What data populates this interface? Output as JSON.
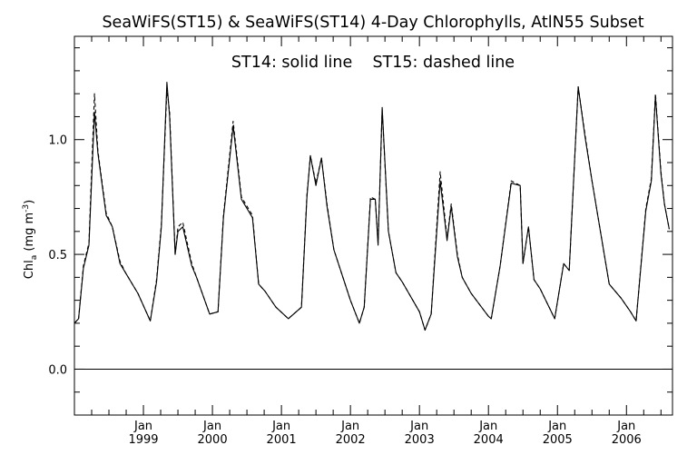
{
  "chart_data": {
    "type": "line",
    "title": "SeaWiFS(ST15) & SeaWiFS(ST14) 4-Day Chlorophylls, AtlN55 Subset",
    "annotation": "ST14: solid line    ST15: dashed line",
    "ylabel": {
      "base": "Chl",
      "subscript": "a",
      "units_pre": " (mg m",
      "units_exp": "-3",
      "units_post": ")"
    },
    "ylim": [
      -0.2,
      1.45
    ],
    "y_ticks": [
      {
        "value": 0.0,
        "label": "0.0"
      },
      {
        "value": 0.5,
        "label": "0.5"
      },
      {
        "value": 1.0,
        "label": "1.0"
      }
    ],
    "y_minor_step": 0.1,
    "xlim": [
      1998.0,
      2006.667
    ],
    "x_tick_dates": [
      1999.0,
      2000.0,
      2001.0,
      2002.0,
      2003.0,
      2004.0,
      2005.0,
      2006.0
    ],
    "x_tick_month": "Jan",
    "x_tick_years": [
      "1999",
      "2000",
      "2001",
      "2002",
      "2003",
      "2004",
      "2005",
      "2006"
    ],
    "x_minor_step_months": 3,
    "zero_line": 0.0,
    "series": [
      {
        "name": "ST14",
        "style": "solid",
        "color": "#000000",
        "x": [
          1998.0,
          1998.06,
          1998.13,
          1998.21,
          1998.29,
          1998.34,
          1998.46,
          1998.55,
          1998.66,
          1998.74,
          1998.92,
          1999.1,
          1999.19,
          1999.26,
          1999.34,
          1999.38,
          1999.46,
          1999.5,
          1999.57,
          1999.7,
          1999.77,
          1999.96,
          2000.08,
          2000.16,
          2000.3,
          2000.42,
          2000.58,
          2000.67,
          2000.76,
          2000.92,
          2001.1,
          2001.29,
          2001.37,
          2001.42,
          2001.5,
          2001.58,
          2001.66,
          2001.76,
          2002.0,
          2002.13,
          2002.2,
          2002.29,
          2002.36,
          2002.4,
          2002.46,
          2002.55,
          2002.66,
          2002.75,
          2003.0,
          2003.08,
          2003.17,
          2003.3,
          2003.4,
          2003.46,
          2003.55,
          2003.62,
          2003.75,
          2004.0,
          2004.04,
          2004.17,
          2004.33,
          2004.46,
          2004.5,
          2004.58,
          2004.66,
          2004.75,
          2004.96,
          2005.09,
          2005.17,
          2005.3,
          2005.4,
          2005.5,
          2005.6,
          2005.75,
          2005.92,
          2006.06,
          2006.14,
          2006.28,
          2006.36,
          2006.42,
          2006.5,
          2006.55,
          2006.62
        ],
        "y": [
          0.2,
          0.22,
          0.44,
          0.54,
          1.12,
          0.94,
          0.67,
          0.62,
          0.46,
          0.42,
          0.33,
          0.21,
          0.38,
          0.62,
          1.25,
          1.1,
          0.5,
          0.6,
          0.62,
          0.45,
          0.4,
          0.24,
          0.25,
          0.66,
          1.06,
          0.74,
          0.66,
          0.37,
          0.34,
          0.27,
          0.22,
          0.27,
          0.75,
          0.93,
          0.8,
          0.92,
          0.71,
          0.52,
          0.3,
          0.2,
          0.27,
          0.74,
          0.74,
          0.54,
          1.14,
          0.6,
          0.42,
          0.38,
          0.25,
          0.17,
          0.24,
          0.82,
          0.56,
          0.71,
          0.49,
          0.4,
          0.33,
          0.23,
          0.22,
          0.45,
          0.81,
          0.8,
          0.46,
          0.62,
          0.39,
          0.35,
          0.22,
          0.46,
          0.43,
          1.23,
          1.01,
          0.82,
          0.64,
          0.37,
          0.31,
          0.25,
          0.21,
          0.69,
          0.82,
          1.19,
          0.85,
          0.72,
          0.61
        ]
      },
      {
        "name": "ST15",
        "style": "dashed",
        "color": "#000000",
        "x": [
          1998.0,
          1998.06,
          1998.13,
          1998.21,
          1998.29,
          1998.34,
          1998.46,
          1998.55,
          1998.66,
          1998.74,
          1998.92,
          1999.1,
          1999.19,
          1999.26,
          1999.34,
          1999.38,
          1999.46,
          1999.5,
          1999.57,
          1999.7,
          1999.77,
          1999.96,
          2000.08,
          2000.16,
          2000.3,
          2000.42,
          2000.58,
          2000.67,
          2000.76,
          2000.92,
          2001.1,
          2001.29,
          2001.37,
          2001.42,
          2001.5,
          2001.58,
          2001.66,
          2001.76,
          2002.0,
          2002.13,
          2002.2,
          2002.29,
          2002.36,
          2002.4,
          2002.46,
          2002.55,
          2002.66,
          2002.75,
          2003.0,
          2003.08,
          2003.17,
          2003.3,
          2003.4,
          2003.46,
          2003.55,
          2003.62,
          2003.75,
          2004.0,
          2004.04,
          2004.17,
          2004.33,
          2004.46,
          2004.5,
          2004.58,
          2004.66,
          2004.75,
          2004.96,
          2005.09,
          2005.17,
          2005.3,
          2005.4,
          2005.5,
          2005.6,
          2005.75,
          2005.92,
          2006.06,
          2006.14,
          2006.28,
          2006.36,
          2006.42,
          2006.5,
          2006.55,
          2006.62
        ],
        "y": [
          0.2,
          0.22,
          0.45,
          0.55,
          1.2,
          0.95,
          0.68,
          0.62,
          0.47,
          0.42,
          0.33,
          0.21,
          0.39,
          0.63,
          1.22,
          1.12,
          0.5,
          0.62,
          0.64,
          0.46,
          0.4,
          0.24,
          0.25,
          0.67,
          1.08,
          0.75,
          0.67,
          0.37,
          0.34,
          0.27,
          0.22,
          0.27,
          0.76,
          0.93,
          0.81,
          0.92,
          0.72,
          0.52,
          0.3,
          0.2,
          0.27,
          0.75,
          0.74,
          0.55,
          1.13,
          0.6,
          0.42,
          0.38,
          0.25,
          0.17,
          0.24,
          0.86,
          0.57,
          0.72,
          0.5,
          0.4,
          0.33,
          0.23,
          0.22,
          0.45,
          0.82,
          0.8,
          0.46,
          0.62,
          0.39,
          0.35,
          0.22,
          0.46,
          0.43,
          1.23,
          1.02,
          0.82,
          0.64,
          0.37,
          0.31,
          0.25,
          0.21,
          0.7,
          0.83,
          1.2,
          0.86,
          0.72,
          0.61
        ]
      }
    ]
  }
}
